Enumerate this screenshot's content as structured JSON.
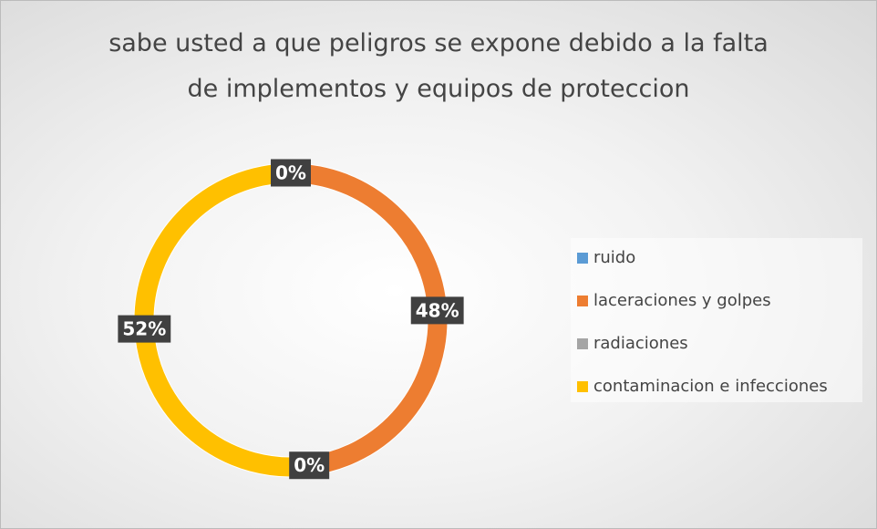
{
  "chart_data": {
    "type": "doughnut",
    "title": "sabe usted a que peligros  se expone debido a la falta de implementos y equipos de proteccion",
    "categories": [
      "ruido",
      "laceraciones  y golpes",
      "radiaciones",
      "contaminacion e infecciones"
    ],
    "values": [
      0,
      48,
      0,
      52
    ],
    "value_labels": [
      "0%",
      "48%",
      "0%",
      "52%"
    ],
    "colors": [
      "#5b9bd5",
      "#ed7d31",
      "#a5a5a5",
      "#ffc000"
    ],
    "legend": "right"
  }
}
